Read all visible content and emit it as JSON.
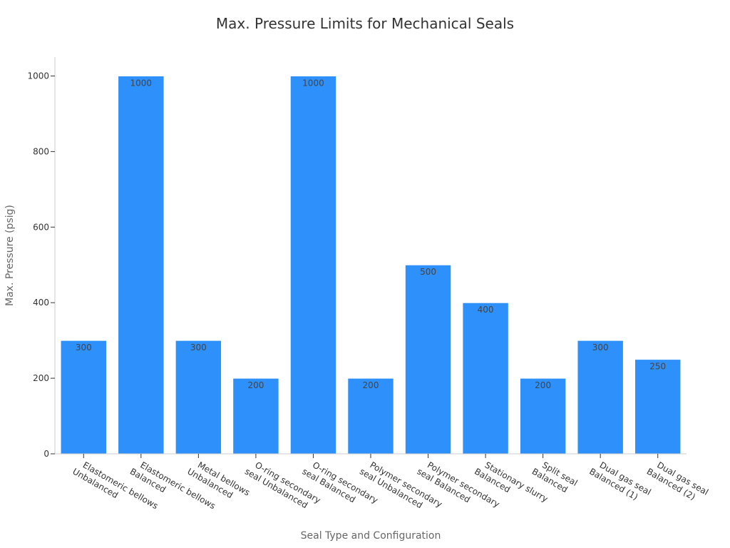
{
  "chart_data": {
    "type": "bar",
    "title": "Max. Pressure Limits for Mechanical Seals",
    "xlabel": "Seal Type and Configuration",
    "ylabel": "Max. Pressure (psig)",
    "categories": [
      [
        "Elastomeric bellows",
        "Unbalanced"
      ],
      [
        "Elastomeric bellows",
        "Balanced"
      ],
      [
        "Metal bellows",
        "Unbalanced"
      ],
      [
        "O-ring secondary",
        "seal Unbalanced"
      ],
      [
        "O-ring secondary",
        "seal Balanced"
      ],
      [
        "Polymer secondary",
        "seal Unbalanced"
      ],
      [
        "Polymer secondary",
        "seal Balanced"
      ],
      [
        "Stationary slurry",
        "Balanced"
      ],
      [
        "Split seal",
        "Balanced"
      ],
      [
        "Dual gas seal",
        "Balanced (1)"
      ],
      [
        "Dual gas seal",
        "Balanced (2)"
      ]
    ],
    "values": [
      300,
      1000,
      300,
      200,
      1000,
      200,
      500,
      400,
      200,
      300,
      250
    ],
    "data_labels": [
      "300",
      "1000",
      "300",
      "200",
      "1000",
      "200",
      "500",
      "400",
      "200",
      "300",
      "250"
    ],
    "ylim": [
      0,
      1050
    ],
    "yticks": [
      0,
      200,
      400,
      600,
      800,
      1000
    ],
    "grid": false,
    "legend": "none",
    "bar_color": "#2e90fa"
  }
}
